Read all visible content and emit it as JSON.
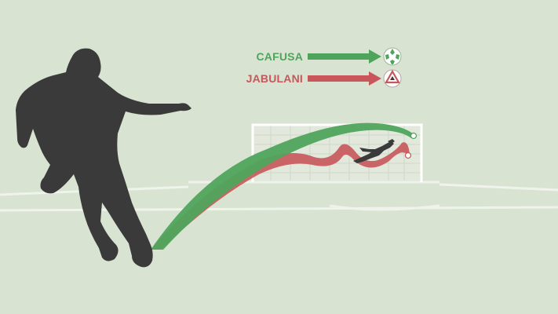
{
  "legend": {
    "items": [
      {
        "label": "CAFUSA",
        "color": "#4fa45c",
        "ball_icon": "soccer-ball-green-icon"
      },
      {
        "label": "JABULANI",
        "color": "#c8565a",
        "ball_icon": "soccer-ball-red-icon"
      }
    ]
  },
  "colors": {
    "background": "#d9e3d2",
    "field_lines": "#f3f6f0",
    "goal_frame": "#ffffff",
    "silhouette": "#3a3a3a",
    "green_trajectory": "#4fa45c",
    "red_trajectory": "#c8565a"
  }
}
